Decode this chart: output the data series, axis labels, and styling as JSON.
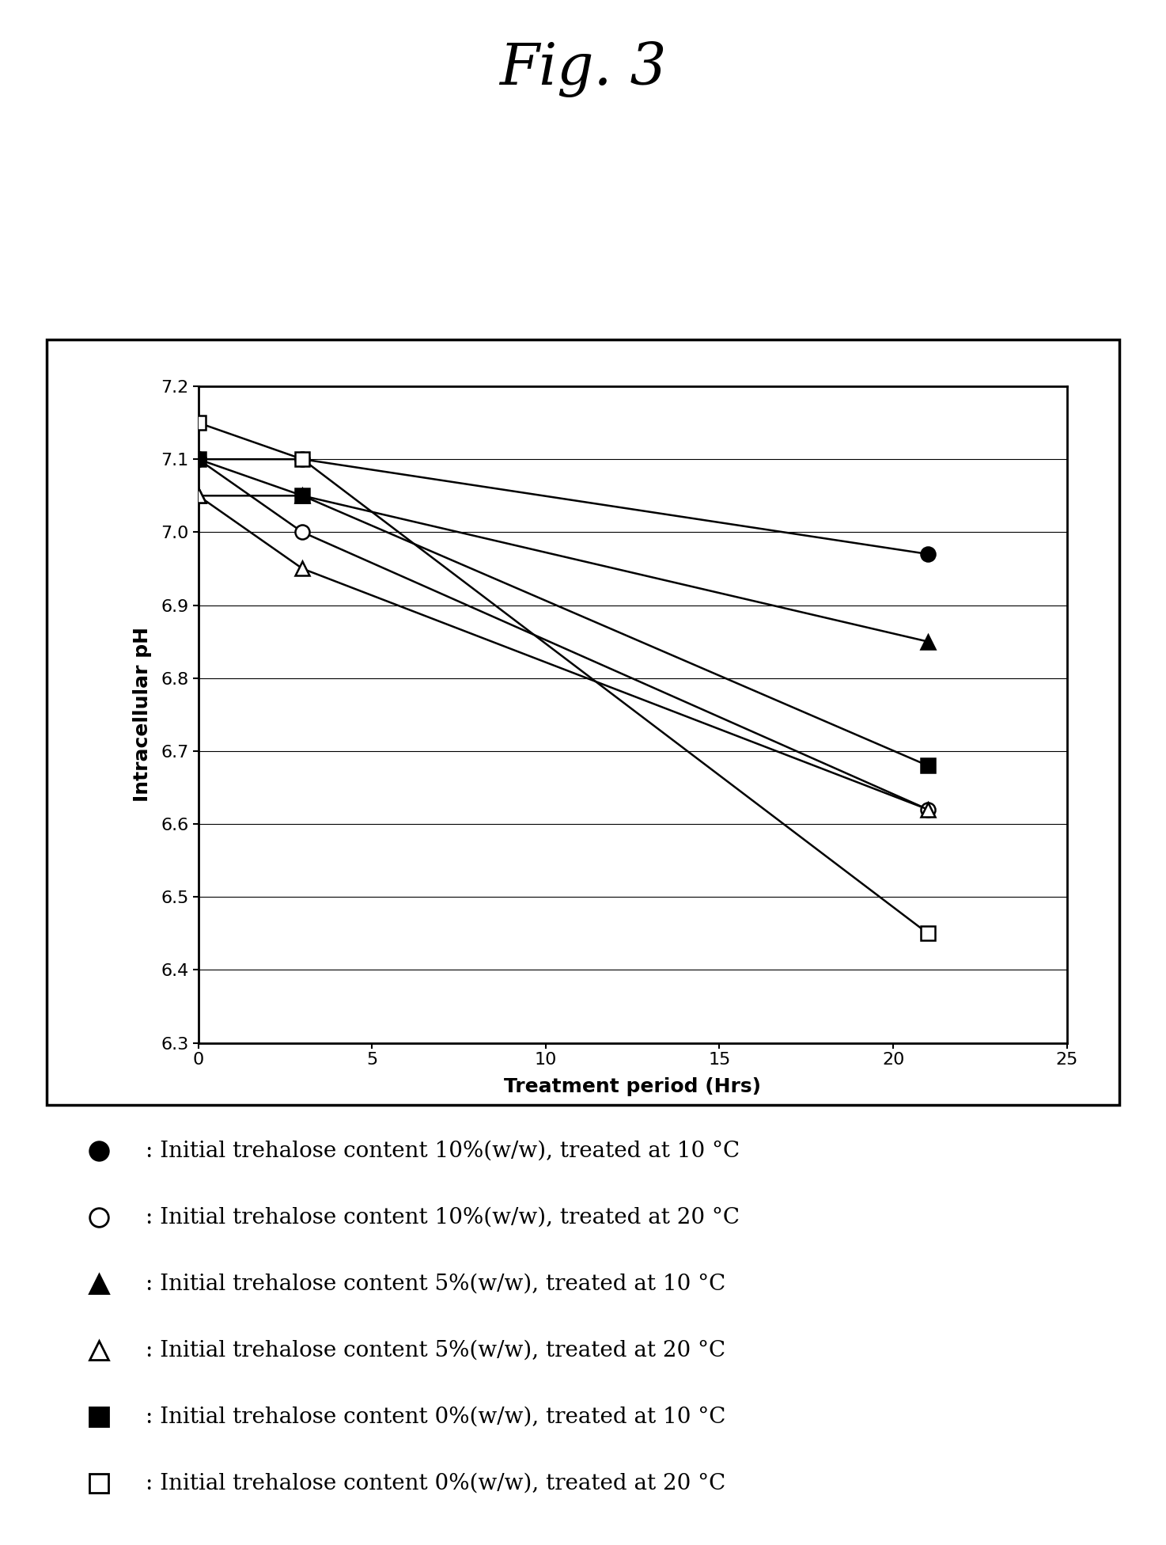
{
  "title": "Fig. 3",
  "xlabel": "Treatment period (Hrs)",
  "ylabel": "Intracellular pH",
  "xlim": [
    0,
    25
  ],
  "ylim": [
    6.3,
    7.2
  ],
  "yticks": [
    6.3,
    6.4,
    6.5,
    6.6,
    6.7,
    6.8,
    6.9,
    7.0,
    7.1,
    7.2
  ],
  "xticks": [
    0,
    5,
    10,
    15,
    20,
    25
  ],
  "series": [
    {
      "label": ": Initial trehalose content 10%(w/w), treated at 10 °C",
      "x": [
        0,
        3,
        21
      ],
      "y": [
        7.1,
        7.1,
        6.97
      ],
      "marker": "o",
      "filled": true
    },
    {
      "label": ": Initial trehalose content 10%(w/w), treated at 20 °C",
      "x": [
        0,
        3,
        21
      ],
      "y": [
        7.1,
        7.0,
        6.62
      ],
      "marker": "o",
      "filled": false
    },
    {
      "label": ": Initial trehalose content 5%(w/w), treated at 10 °C",
      "x": [
        0,
        3,
        21
      ],
      "y": [
        7.05,
        7.05,
        6.85
      ],
      "marker": "^",
      "filled": true
    },
    {
      "label": ": Initial trehalose content 5%(w/w), treated at 20 °C",
      "x": [
        0,
        3,
        21
      ],
      "y": [
        7.05,
        6.95,
        6.62
      ],
      "marker": "^",
      "filled": false
    },
    {
      "label": ": Initial trehalose content 0%(w/w), treated at 10 °C",
      "x": [
        0,
        3,
        21
      ],
      "y": [
        7.1,
        7.05,
        6.68
      ],
      "marker": "s",
      "filled": true
    },
    {
      "label": ": Initial trehalose content 0%(w/w), treated at 20 °C",
      "x": [
        0,
        3,
        21
      ],
      "y": [
        7.15,
        7.1,
        6.45
      ],
      "marker": "s",
      "filled": false
    }
  ],
  "background_color": "#ffffff",
  "marker_size": 13,
  "linewidth": 1.8,
  "title_fontsize": 52,
  "axis_label_fontsize": 18,
  "tick_fontsize": 16,
  "legend_fontsize": 20
}
